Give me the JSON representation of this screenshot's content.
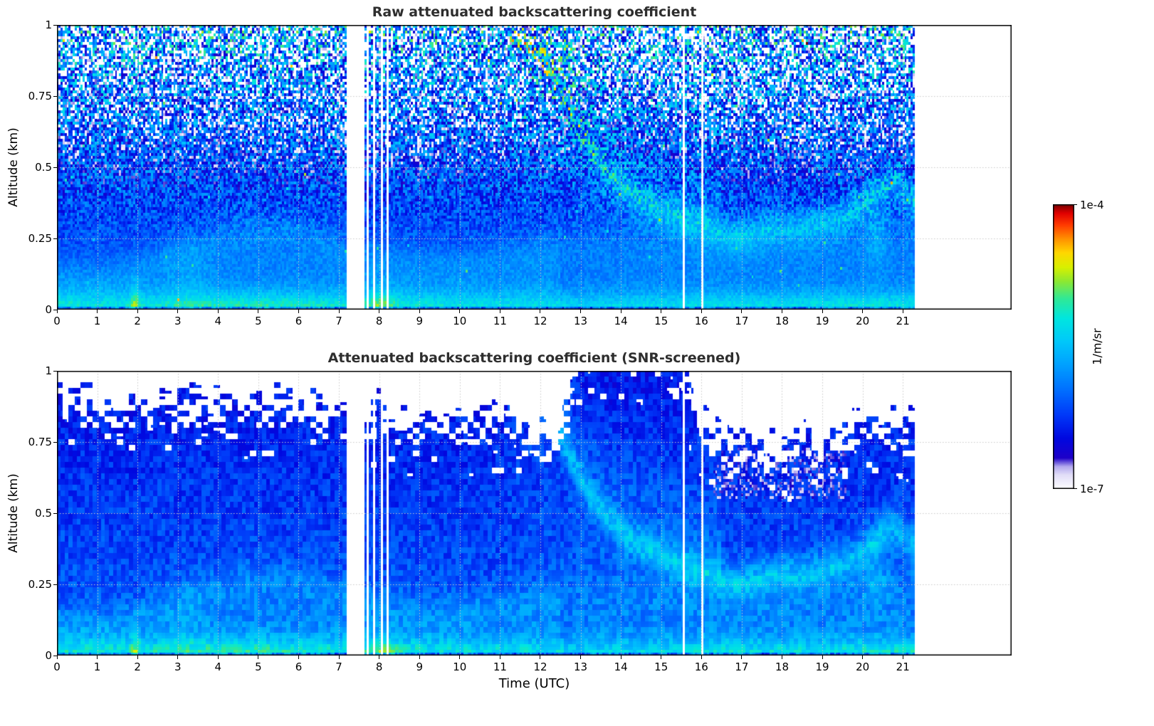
{
  "figure": {
    "background": "#ffffff"
  },
  "chart_data": {
    "type": "heatmap",
    "panels": [
      {
        "id": "raw",
        "title": "Raw attenuated backscattering coefficient",
        "snr_screened": false
      },
      {
        "id": "screened",
        "title": "Attenuated backscattering coefficient (SNR-screened)",
        "snr_screened": true
      }
    ],
    "x_axis": {
      "label": "Time (UTC)",
      "range": [
        0,
        23.7
      ],
      "data_end": 21.3,
      "ticks": [
        0,
        1,
        2,
        3,
        4,
        5,
        6,
        7,
        8,
        9,
        10,
        11,
        12,
        13,
        14,
        15,
        16,
        17,
        18,
        19,
        20,
        21
      ]
    },
    "y_axis": {
      "label": "Altitude (km)",
      "range": [
        0,
        1
      ],
      "ticks": [
        0,
        0.25,
        0.5,
        0.75,
        1
      ],
      "tick_labels": [
        "0",
        "0.25",
        "0.5",
        "0.75",
        "1"
      ]
    },
    "colorbar": {
      "label": "1/m/sr",
      "scale": "log",
      "min_label": "1e-7",
      "max_label": "1e-4",
      "tick_labels": [
        "1e-4",
        "1e-7"
      ],
      "colormap": [
        [
          0.0,
          "#ffffff"
        ],
        [
          0.05,
          "#e2def8"
        ],
        [
          0.08,
          "#b2a8ee"
        ],
        [
          0.11,
          "#1e00c8"
        ],
        [
          0.18,
          "#0008e0"
        ],
        [
          0.26,
          "#0038f8"
        ],
        [
          0.35,
          "#0070ff"
        ],
        [
          0.44,
          "#00a2ff"
        ],
        [
          0.52,
          "#00c8fa"
        ],
        [
          0.6,
          "#00e6e0"
        ],
        [
          0.67,
          "#30e896"
        ],
        [
          0.73,
          "#8ce832"
        ],
        [
          0.78,
          "#d8f000"
        ],
        [
          0.83,
          "#ffd800"
        ],
        [
          0.88,
          "#ff9000"
        ],
        [
          0.93,
          "#ff3800"
        ],
        [
          0.97,
          "#e00000"
        ],
        [
          1.0,
          "#7a0000"
        ]
      ]
    },
    "data_gaps_utc": [
      [
        7.18,
        7.64
      ],
      [
        7.7,
        7.76
      ],
      [
        7.86,
        7.92
      ],
      [
        8.04,
        8.1
      ],
      [
        8.18,
        8.23
      ],
      [
        15.53,
        15.58
      ],
      [
        16.0,
        16.06
      ]
    ],
    "features": {
      "surface_intensity": [
        [
          0,
          0.23
        ],
        [
          1,
          0.21
        ],
        [
          2,
          0.21
        ],
        [
          3,
          0.25
        ],
        [
          4,
          0.26
        ],
        [
          5,
          0.27
        ],
        [
          6,
          0.25
        ],
        [
          7,
          0.23
        ],
        [
          7.7,
          0.24
        ],
        [
          8.1,
          0.24
        ],
        [
          9,
          0.22
        ],
        [
          10,
          0.2
        ],
        [
          11,
          0.2
        ],
        [
          12,
          0.19
        ],
        [
          14,
          0.19
        ],
        [
          16,
          0.2
        ],
        [
          18,
          0.2
        ],
        [
          19,
          0.21
        ],
        [
          20,
          0.23
        ],
        [
          21.3,
          0.24
        ]
      ],
      "boundary_layer_height_km": [
        [
          0,
          0.12
        ],
        [
          1,
          0.12
        ],
        [
          2,
          0.14
        ],
        [
          3,
          0.2
        ],
        [
          4,
          0.24
        ],
        [
          5,
          0.27
        ],
        [
          6,
          0.26
        ],
        [
          7,
          0.22
        ],
        [
          8,
          0.18
        ],
        [
          9,
          0.16
        ],
        [
          10,
          0.16
        ],
        [
          11,
          0.18
        ],
        [
          12,
          0.2
        ],
        [
          13,
          0.22
        ],
        [
          14,
          0.22
        ],
        [
          15,
          0.22
        ],
        [
          16,
          0.2
        ],
        [
          17,
          0.2
        ],
        [
          18,
          0.2
        ],
        [
          19,
          0.22
        ],
        [
          20,
          0.24
        ],
        [
          21.3,
          0.24
        ]
      ],
      "elevated_layer_height_km": [
        [
          11.2,
          0.98
        ],
        [
          11.6,
          0.94
        ],
        [
          12,
          0.88
        ],
        [
          12.4,
          0.8
        ],
        [
          12.8,
          0.68
        ],
        [
          13.2,
          0.57
        ],
        [
          13.6,
          0.49
        ],
        [
          14,
          0.43
        ],
        [
          14.5,
          0.38
        ],
        [
          15,
          0.345
        ],
        [
          15.5,
          0.315
        ],
        [
          16,
          0.29
        ],
        [
          16.5,
          0.27
        ],
        [
          17,
          0.265
        ],
        [
          17.5,
          0.285
        ],
        [
          18,
          0.295
        ],
        [
          18.5,
          0.295
        ],
        [
          19,
          0.31
        ],
        [
          19.5,
          0.33
        ],
        [
          20,
          0.37
        ],
        [
          20.4,
          0.43
        ],
        [
          20.8,
          0.46
        ],
        [
          21.1,
          0.42
        ],
        [
          21.3,
          0.39
        ]
      ],
      "snr_mask_top_km": [
        [
          0,
          0.9
        ],
        [
          1,
          0.88
        ],
        [
          2,
          0.86
        ],
        [
          3,
          0.88
        ],
        [
          4,
          0.86
        ],
        [
          5,
          0.88
        ],
        [
          6,
          0.87
        ],
        [
          7,
          0.86
        ],
        [
          7.6,
          0.84
        ],
        [
          8,
          0.84
        ],
        [
          9,
          0.8
        ],
        [
          10,
          0.82
        ],
        [
          11,
          0.8
        ],
        [
          11.6,
          0.78
        ],
        [
          12.0,
          0.76
        ],
        [
          12.4,
          0.73
        ],
        [
          12.7,
          0.9
        ],
        [
          13,
          1.05
        ],
        [
          14,
          1.08
        ],
        [
          15,
          1.05
        ],
        [
          15.6,
          0.95
        ],
        [
          16,
          0.8
        ],
        [
          16.5,
          0.76
        ],
        [
          17,
          0.73
        ],
        [
          17.5,
          0.72
        ],
        [
          18,
          0.72
        ],
        [
          18.5,
          0.73
        ],
        [
          19,
          0.75
        ],
        [
          19.5,
          0.76
        ],
        [
          20,
          0.8
        ],
        [
          20.5,
          0.82
        ],
        [
          21,
          0.8
        ],
        [
          21.3,
          0.78
        ]
      ],
      "bright_patches": [
        [
          8.05,
          0.0,
          0.38,
          0.1,
          0.1
        ],
        [
          1.95,
          0.0,
          0.12,
          0.09,
          0.16
        ],
        [
          20.35,
          0.28,
          0.3,
          0.14,
          0.1
        ],
        [
          3.3,
          0.12,
          0.5,
          0.12,
          0.05
        ]
      ]
    },
    "render": {
      "bg0": 0.33,
      "bgslope": 0.13,
      "surface_depth": 0.06,
      "bl_amp": 0.08,
      "el_amp": 0.17,
      "el_width": 0.06,
      "pale_region": [
        16.3,
        19.6,
        0.55,
        0.73
      ],
      "grid_color": "#c8c8c8"
    }
  }
}
